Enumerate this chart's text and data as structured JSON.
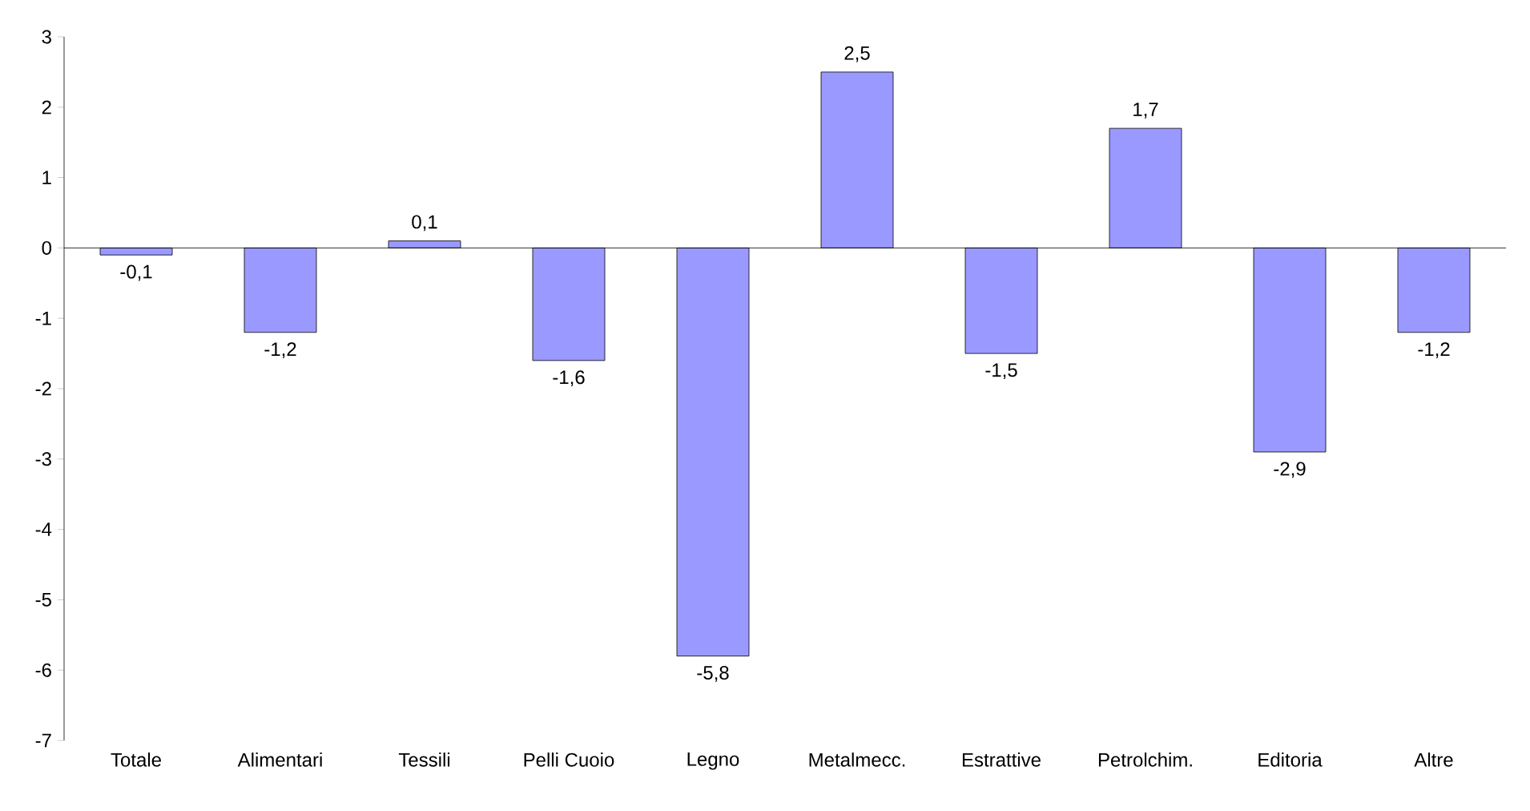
{
  "chart_data": {
    "type": "bar",
    "categories": [
      "Totale",
      "Alimentari",
      "Tessili",
      "Pelli Cuoio",
      "Legno",
      "Metalmecc.",
      "Estrattive",
      "Petrolchim.",
      "Editoria",
      "Altre"
    ],
    "values": [
      -0.1,
      -1.2,
      0.1,
      -1.6,
      -5.8,
      2.5,
      -1.5,
      1.7,
      -2.9,
      -1.2
    ],
    "value_labels": [
      "-0,1",
      "-1,2",
      "0,1",
      "-1,6",
      "-5,8",
      "2,5",
      "-1,5",
      "1,7",
      "-2,9",
      "-1,2"
    ],
    "color": "#9999ff",
    "ylim": [
      -7,
      3
    ],
    "yticks": [
      -7,
      -6,
      -5,
      -4,
      -3,
      -2,
      -1,
      0,
      1,
      2,
      3
    ]
  }
}
